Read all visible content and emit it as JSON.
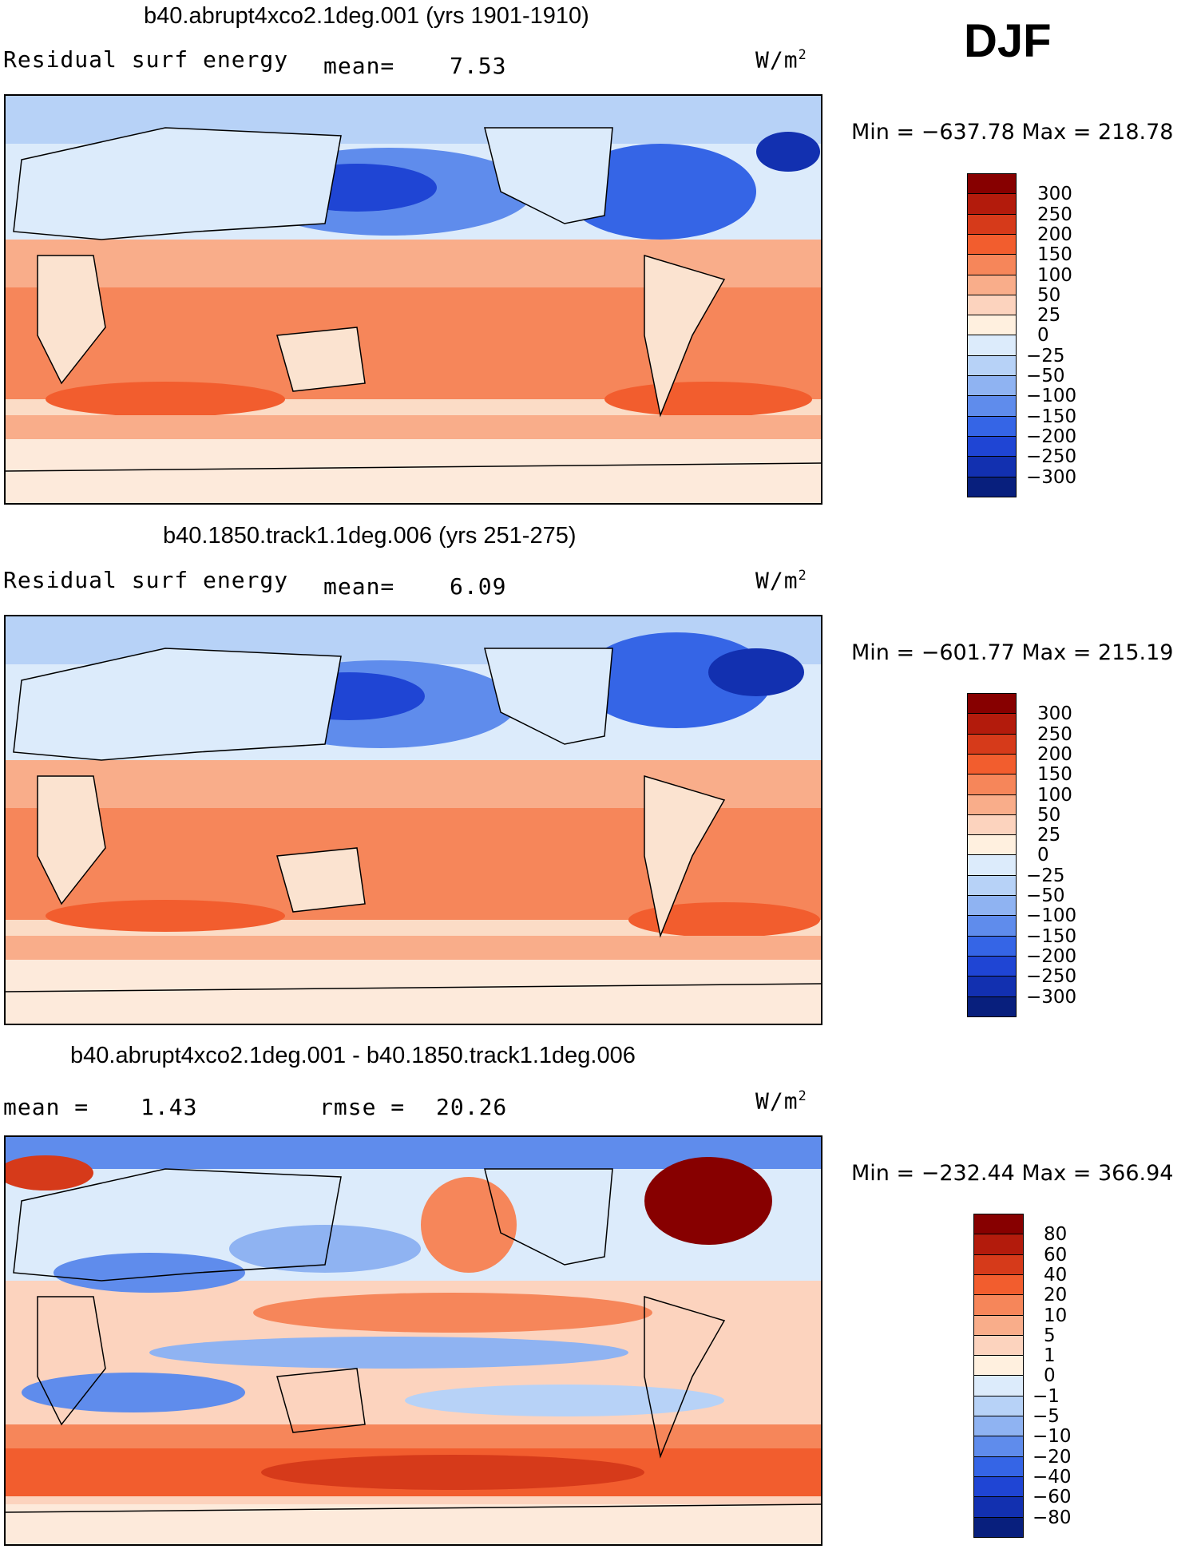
{
  "season": "DJF",
  "units_base": "W/m",
  "units_exp": "2",
  "panels": [
    {
      "title": "b40.abrupt4xco2.1deg.001 (yrs 1901-1910)",
      "left_label": "Residual surf energy",
      "stat_label": "mean=",
      "stat_value": "7.53",
      "minmax": "Min = −637.78 Max = 218.78",
      "colorbar_key": "abs"
    },
    {
      "title": "b40.1850.track1.1deg.006 (yrs 251-275)",
      "left_label": "Residual surf energy",
      "stat_label": "mean=",
      "stat_value": "6.09",
      "minmax": "Min = −601.77 Max = 215.19",
      "colorbar_key": "abs"
    },
    {
      "title": "b40.abrupt4xco2.1deg.001 - b40.1850.track1.1deg.006",
      "left_label": "mean =",
      "left_value": "1.43",
      "stat_label": "rmse =",
      "stat_value": "20.26",
      "minmax": "Min = −232.44 Max = 366.94",
      "colorbar_key": "diff"
    }
  ],
  "colorbars": {
    "abs": {
      "labels": [
        "300",
        "250",
        "200",
        "150",
        "100",
        "50",
        "25",
        "0",
        "−25",
        "−50",
        "−100",
        "−150",
        "−200",
        "−250",
        "−300"
      ],
      "colors": [
        "#870000",
        "#b31b0c",
        "#d63a1a",
        "#f25d2e",
        "#f6865a",
        "#f9ad8a",
        "#fcd3be",
        "#fff0df",
        "#dcebfb",
        "#b7d2f7",
        "#8fb3f2",
        "#5f8cec",
        "#3565e6",
        "#1f45d4",
        "#1230b0",
        "#081f7d"
      ]
    },
    "diff": {
      "labels": [
        "80",
        "60",
        "40",
        "20",
        "10",
        "5",
        "1",
        "0",
        "−1",
        "−5",
        "−10",
        "−20",
        "−40",
        "−60",
        "−80"
      ],
      "colors": [
        "#870000",
        "#b31b0c",
        "#d63a1a",
        "#f25d2e",
        "#f6865a",
        "#f9ad8a",
        "#fcd3be",
        "#fff0df",
        "#dcebfb",
        "#b7d2f7",
        "#8fb3f2",
        "#5f8cec",
        "#3565e6",
        "#1f45d4",
        "#1230b0",
        "#081f7d"
      ]
    }
  }
}
